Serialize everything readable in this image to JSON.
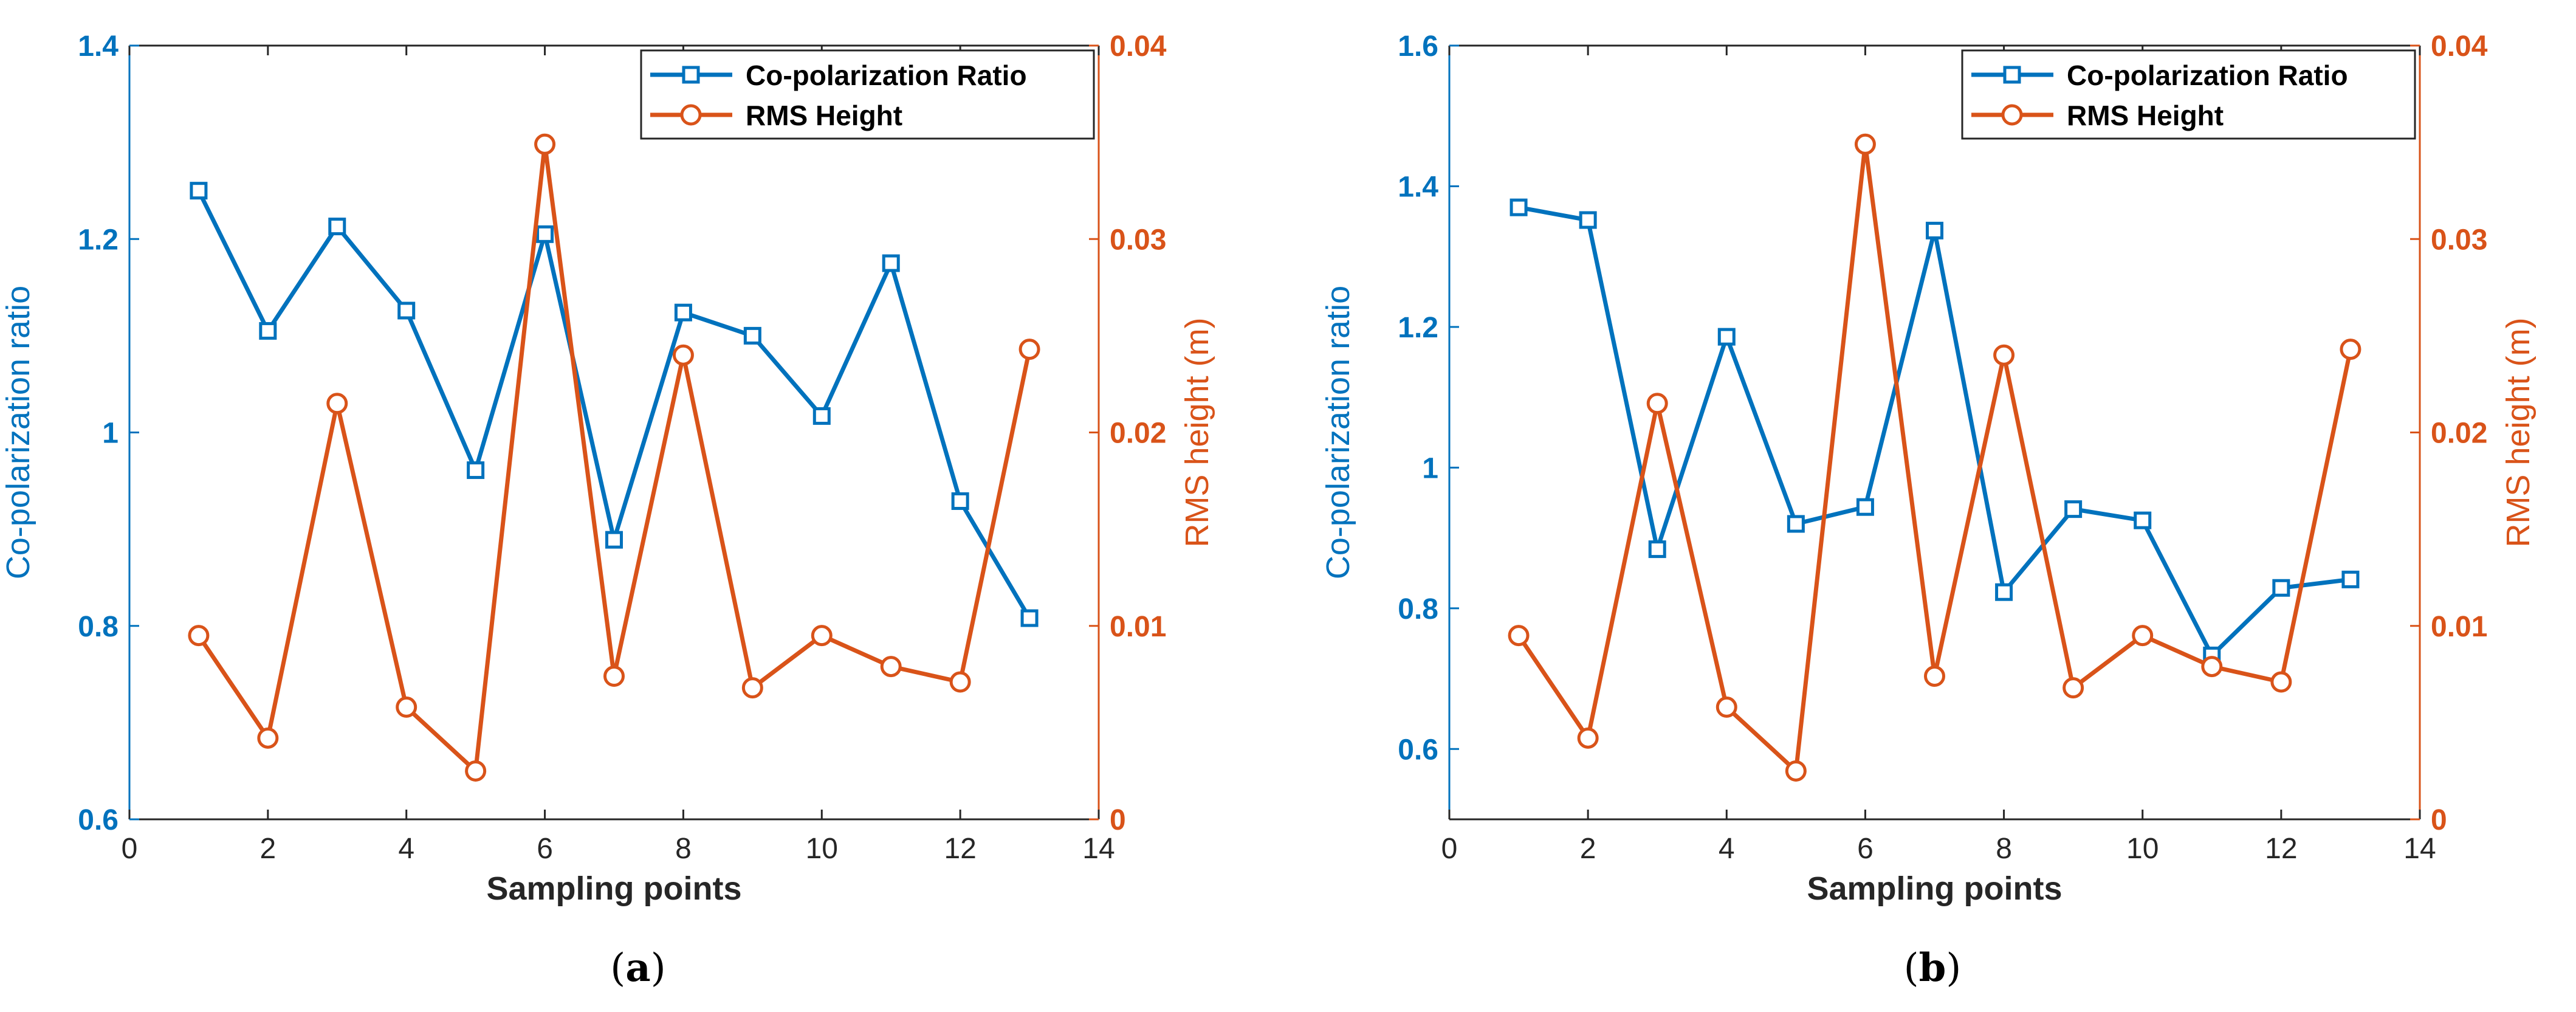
{
  "colors": {
    "left_axis": "#0072BD",
    "right_axis": "#D95319",
    "frame": "#262626",
    "text": "#262626"
  },
  "chart_data": [
    {
      "type": "line",
      "panel_label": "(a)",
      "xlabel": "Sampling points",
      "ylabel_left": "Co-polarization ratio",
      "ylabel_right": "RMS height (m)",
      "xlim": [
        0,
        14
      ],
      "ylim_left": [
        0.6,
        1.4
      ],
      "ylim_right": [
        0,
        0.04
      ],
      "xticks": [
        0,
        2,
        4,
        6,
        8,
        10,
        12,
        14
      ],
      "xtick_labels": [
        "0",
        "2",
        "4",
        "6",
        "8",
        "10",
        "12",
        "14"
      ],
      "yticks_left": [
        0.6,
        0.8,
        1.0,
        1.2,
        1.4
      ],
      "ytick_labels_left": [
        "0.6",
        "0.8",
        "1",
        "1.2",
        "1.4"
      ],
      "yticks_right": [
        0,
        0.01,
        0.02,
        0.03,
        0.04
      ],
      "ytick_labels_right": [
        "0",
        "0.01",
        "0.02",
        "0.03",
        "0.04"
      ],
      "legend_position": "top-right",
      "series": [
        {
          "name": "Co-polarization Ratio",
          "axis": "left",
          "marker": "square",
          "x": [
            1,
            2,
            3,
            4,
            5,
            6,
            7,
            8,
            9,
            10,
            11,
            12,
            13
          ],
          "values": [
            1.25,
            1.105,
            1.213,
            1.126,
            0.961,
            1.205,
            0.889,
            1.124,
            1.1,
            1.017,
            1.175,
            0.929,
            0.808
          ]
        },
        {
          "name": "RMS Height",
          "axis": "right",
          "marker": "circle",
          "x": [
            1,
            2,
            3,
            4,
            5,
            6,
            7,
            8,
            9,
            10,
            11,
            12,
            13
          ],
          "values": [
            0.0095,
            0.0042,
            0.0215,
            0.0058,
            0.0025,
            0.0349,
            0.0074,
            0.024,
            0.0068,
            0.0095,
            0.0079,
            0.0071,
            0.0243
          ]
        }
      ]
    },
    {
      "type": "line",
      "panel_label": "(b)",
      "xlabel": "Sampling points",
      "ylabel_left": "Co-polarization ratio",
      "ylabel_right": "RMS height (m)",
      "xlim": [
        0,
        14
      ],
      "ylim_left": [
        0.5,
        1.6
      ],
      "ylim_right": [
        0,
        0.04
      ],
      "xticks": [
        0,
        2,
        4,
        6,
        8,
        10,
        12,
        14
      ],
      "xtick_labels": [
        "0",
        "2",
        "4",
        "6",
        "8",
        "10",
        "12",
        "14"
      ],
      "yticks_left": [
        0.6,
        0.8,
        1.0,
        1.2,
        1.4,
        1.6
      ],
      "ytick_labels_left": [
        "0.6",
        "0.8",
        "1",
        "1.2",
        "1.4",
        "1.6"
      ],
      "yticks_right": [
        0,
        0.01,
        0.02,
        0.03,
        0.04
      ],
      "ytick_labels_right": [
        "0",
        "0.01",
        "0.02",
        "0.03",
        "0.04"
      ],
      "legend_position": "top-right",
      "series": [
        {
          "name": "Co-polarization Ratio",
          "axis": "left",
          "marker": "square",
          "x": [
            1,
            2,
            3,
            4,
            5,
            6,
            7,
            8,
            9,
            10,
            11,
            12,
            13
          ],
          "values": [
            1.37,
            1.352,
            0.884,
            1.186,
            0.92,
            0.944,
            1.337,
            0.823,
            0.941,
            0.925,
            0.733,
            0.829,
            0.841
          ]
        },
        {
          "name": "RMS Height",
          "axis": "right",
          "marker": "circle",
          "x": [
            1,
            2,
            3,
            4,
            5,
            6,
            7,
            8,
            9,
            10,
            11,
            12,
            13
          ],
          "values": [
            0.0095,
            0.0042,
            0.0215,
            0.0058,
            0.0025,
            0.0349,
            0.0074,
            0.024,
            0.0068,
            0.0095,
            0.0079,
            0.0071,
            0.0243
          ]
        }
      ]
    }
  ]
}
